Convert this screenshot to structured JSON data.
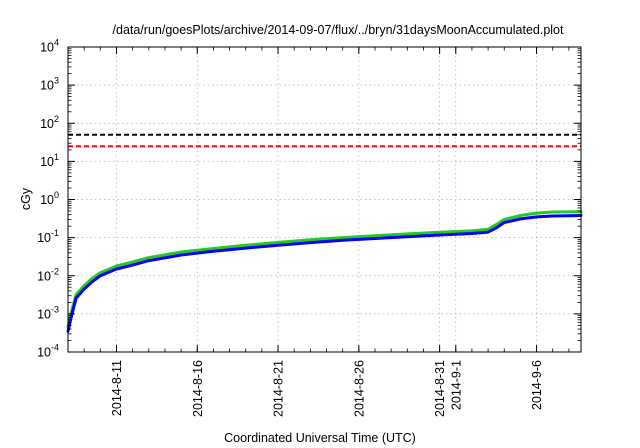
{
  "chart_data": {
    "type": "line",
    "title": "/data/run/goesPlots/archive/2014-09-07/flux/../bryn/31daysMoonAccumulated.plot",
    "xlabel": "Coordinated Universal Time (UTC)",
    "ylabel": "cGy",
    "y_scale": "log",
    "ylim": [
      0.0001,
      10000
    ],
    "y_ticks": [
      {
        "value": 0.0001,
        "base": "10",
        "exp": "-4"
      },
      {
        "value": 0.001,
        "base": "10",
        "exp": "-3"
      },
      {
        "value": 0.01,
        "base": "10",
        "exp": "-2"
      },
      {
        "value": 0.1,
        "base": "10",
        "exp": "-1"
      },
      {
        "value": 1,
        "base": "10",
        "exp": "0"
      },
      {
        "value": 10,
        "base": "10",
        "exp": "1"
      },
      {
        "value": 100,
        "base": "10",
        "exp": "2"
      },
      {
        "value": 1000,
        "base": "10",
        "exp": "3"
      },
      {
        "value": 10000,
        "base": "10",
        "exp": "4"
      }
    ],
    "xlim": [
      "2014-08-08",
      "2014-09-08 18:00"
    ],
    "x_ticks": [
      {
        "value": "2014-08-11",
        "label": "2014-8-11"
      },
      {
        "value": "2014-08-16",
        "label": "2014-8-16"
      },
      {
        "value": "2014-08-21",
        "label": "2014-8-21"
      },
      {
        "value": "2014-08-26",
        "label": "2014-8-26"
      },
      {
        "value": "2014-08-31",
        "label": "2014-8-31"
      },
      {
        "value": "2014-09-01",
        "label": "2014-9-1"
      },
      {
        "value": "2014-09-06",
        "label": "2014-9-6"
      }
    ],
    "grid": true,
    "reference_lines": [
      {
        "y": 50,
        "color": "#000000",
        "style": "dashed"
      },
      {
        "y": 25,
        "color": "#ff0000",
        "style": "dashed"
      }
    ],
    "series": [
      {
        "color": "#22cc22",
        "x": [
          "2014-08-08",
          "2014-08-08 06:00",
          "2014-08-08 12:00",
          "2014-08-09",
          "2014-08-09 12:00",
          "2014-08-10",
          "2014-08-11",
          "2014-08-12",
          "2014-08-13",
          "2014-08-15",
          "2014-08-17",
          "2014-08-19",
          "2014-08-21",
          "2014-08-23",
          "2014-08-25",
          "2014-08-27",
          "2014-08-29",
          "2014-08-31",
          "2014-09-02",
          "2014-09-03",
          "2014-09-03 12:00",
          "2014-09-04",
          "2014-09-05",
          "2014-09-06",
          "2014-09-07",
          "2014-09-08 18:00"
        ],
        "y": [
          0.00045,
          0.0013,
          0.0032,
          0.0055,
          0.0085,
          0.012,
          0.018,
          0.023,
          0.03,
          0.042,
          0.052,
          0.063,
          0.075,
          0.088,
          0.1,
          0.112,
          0.125,
          0.138,
          0.15,
          0.165,
          0.22,
          0.3,
          0.38,
          0.44,
          0.47,
          0.48
        ]
      },
      {
        "color": "#0000ff",
        "x": [
          "2014-08-08",
          "2014-08-08 06:00",
          "2014-08-08 12:00",
          "2014-08-09",
          "2014-08-09 12:00",
          "2014-08-10",
          "2014-08-11",
          "2014-08-12",
          "2014-08-13",
          "2014-08-15",
          "2014-08-17",
          "2014-08-19",
          "2014-08-21",
          "2014-08-23",
          "2014-08-25",
          "2014-08-27",
          "2014-08-29",
          "2014-08-31",
          "2014-09-02",
          "2014-09-03",
          "2014-09-03 12:00",
          "2014-09-04",
          "2014-09-05",
          "2014-09-06",
          "2014-09-07",
          "2014-09-08 18:00"
        ],
        "y": [
          0.00035,
          0.001,
          0.0026,
          0.0045,
          0.007,
          0.01,
          0.015,
          0.019,
          0.025,
          0.035,
          0.044,
          0.053,
          0.063,
          0.074,
          0.085,
          0.095,
          0.106,
          0.117,
          0.128,
          0.14,
          0.18,
          0.25,
          0.31,
          0.35,
          0.37,
          0.38
        ]
      }
    ]
  }
}
